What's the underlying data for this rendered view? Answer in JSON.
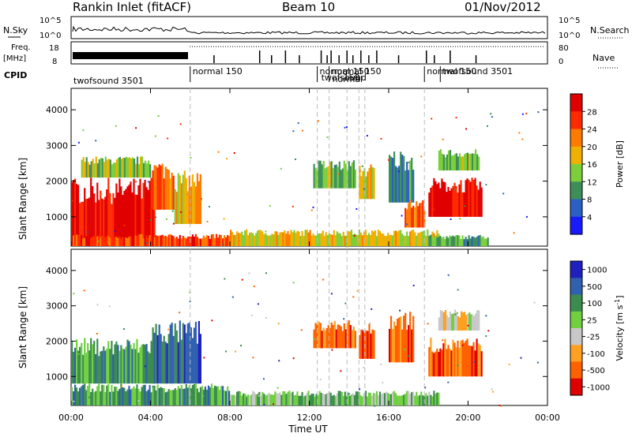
{
  "header": {
    "station": "Rankin Inlet (fitACF)",
    "beam": "Beam 10",
    "date": "01/Nov/2012"
  },
  "strips": {
    "nsky_label": "N.Sky",
    "nsearch_label": "N.Search",
    "noise_ticks": [
      "10^5",
      "10^0"
    ],
    "freq_label": "Freq.",
    "freq_unit": "[MHz]",
    "freq_ticks": [
      "18",
      "8"
    ],
    "nave_label": "Nave",
    "nave_ticks": [
      "80",
      "0"
    ],
    "cpid_label": "CPID"
  },
  "cpid_segments": [
    {
      "start": 0.0,
      "label": "twofsound 3501"
    },
    {
      "start": 6.0,
      "label": "normal 150"
    },
    {
      "start": 12.4,
      "label": "normal 150"
    },
    {
      "start": 13.0,
      "label": "normal 150"
    },
    {
      "start": 17.8,
      "label": "normal 150"
    },
    {
      "start": 18.6,
      "label": "twofsound 3501"
    }
  ],
  "cpid_overlap_text": [
    "twofsound",
    "normal",
    "150"
  ],
  "chart_data": [
    {
      "type": "heatmap",
      "quantity": "Power",
      "ylabel": "Slant Range [km]",
      "xlabel": "Time UT",
      "xlim": [
        0,
        24
      ],
      "ylim": [
        180,
        4600
      ],
      "x_ticks": [
        "00:00",
        "04:00",
        "08:00",
        "12:00",
        "16:00",
        "20:00",
        "00:00"
      ],
      "y_ticks": [
        1000,
        2000,
        3000,
        4000
      ],
      "colorbar": {
        "label": "Power [dB]",
        "ticks": [
          "4",
          "8",
          "12",
          "16",
          "20",
          "24",
          "28"
        ],
        "range": [
          0,
          30
        ],
        "colors": [
          "#1a1aff",
          "#2a5fc4",
          "#3d8f5a",
          "#7ccf3a",
          "#f0b000",
          "#ff7a00",
          "#ff2a00",
          "#e00000"
        ]
      },
      "regions": [
        {
          "t0": 0.0,
          "t1": 4.2,
          "r0": 250,
          "r1": 2100,
          "v": 27
        },
        {
          "t0": 0.5,
          "t1": 4.0,
          "r0": 2100,
          "r1": 2700,
          "v": 14
        },
        {
          "t0": 4.0,
          "t1": 5.2,
          "r0": 1200,
          "r1": 2600,
          "v": 22
        },
        {
          "t0": 5.2,
          "t1": 6.5,
          "r0": 800,
          "r1": 2300,
          "v": 18
        },
        {
          "t0": 0.0,
          "t1": 8.0,
          "r0": 180,
          "r1": 520,
          "v": 24
        },
        {
          "t0": 8.0,
          "t1": 18.5,
          "r0": 180,
          "r1": 650,
          "v": 16
        },
        {
          "t0": 12.2,
          "t1": 14.3,
          "r0": 1800,
          "r1": 2600,
          "v": 12
        },
        {
          "t0": 14.5,
          "t1": 15.3,
          "r0": 1500,
          "r1": 2500,
          "v": 16
        },
        {
          "t0": 16.0,
          "t1": 17.2,
          "r0": 1400,
          "r1": 2900,
          "v": 8
        },
        {
          "t0": 16.8,
          "t1": 17.8,
          "r0": 700,
          "r1": 1500,
          "v": 22
        },
        {
          "t0": 18.0,
          "t1": 20.7,
          "r0": 1000,
          "r1": 2100,
          "v": 27
        },
        {
          "t0": 18.5,
          "t1": 20.5,
          "r0": 2300,
          "r1": 2900,
          "v": 12
        },
        {
          "t0": 18.0,
          "t1": 21.0,
          "r0": 180,
          "r1": 500,
          "v": 10
        }
      ]
    },
    {
      "type": "heatmap",
      "quantity": "Velocity",
      "ylabel": "Slant Range [km]",
      "xlabel": "Time UT",
      "xlim": [
        0,
        24
      ],
      "ylim": [
        180,
        4600
      ],
      "x_ticks": [
        "00:00",
        "04:00",
        "08:00",
        "12:00",
        "16:00",
        "20:00",
        "00:00"
      ],
      "y_ticks": [
        1000,
        2000,
        3000,
        4000
      ],
      "colorbar": {
        "label": "Velocity [m s-1]",
        "label_prefix": "Velocity [m s",
        "label_sup": "-1",
        "label_suffix": "]",
        "ticks": [
          "1000",
          "500",
          "100",
          "25",
          "-25",
          "-100",
          "-500",
          "-1000"
        ],
        "colors": [
          "#2020c0",
          "#3060b0",
          "#3c8c50",
          "#70d040",
          "#c8c8c8",
          "#ffa020",
          "#ff6000",
          "#e00000"
        ]
      },
      "regions": [
        {
          "t0": 0.0,
          "t1": 4.2,
          "r0": 800,
          "r1": 2100,
          "v": 2
        },
        {
          "t0": 4.0,
          "t1": 6.5,
          "r0": 800,
          "r1": 2600,
          "v": 1
        },
        {
          "t0": 0.0,
          "t1": 8.0,
          "r0": 180,
          "r1": 800,
          "v": 2
        },
        {
          "t0": 8.0,
          "t1": 18.5,
          "r0": 180,
          "r1": 600,
          "v": 3
        },
        {
          "t0": 12.2,
          "t1": 14.3,
          "r0": 1800,
          "r1": 2600,
          "v": 6
        },
        {
          "t0": 14.5,
          "t1": 15.3,
          "r0": 1500,
          "r1": 2500,
          "v": 6
        },
        {
          "t0": 16.0,
          "t1": 17.2,
          "r0": 1400,
          "r1": 2900,
          "v": 6
        },
        {
          "t0": 18.0,
          "t1": 20.7,
          "r0": 1000,
          "r1": 2100,
          "v": 6
        },
        {
          "t0": 18.5,
          "t1": 20.5,
          "r0": 2300,
          "r1": 2900,
          "v": 4
        }
      ]
    }
  ]
}
